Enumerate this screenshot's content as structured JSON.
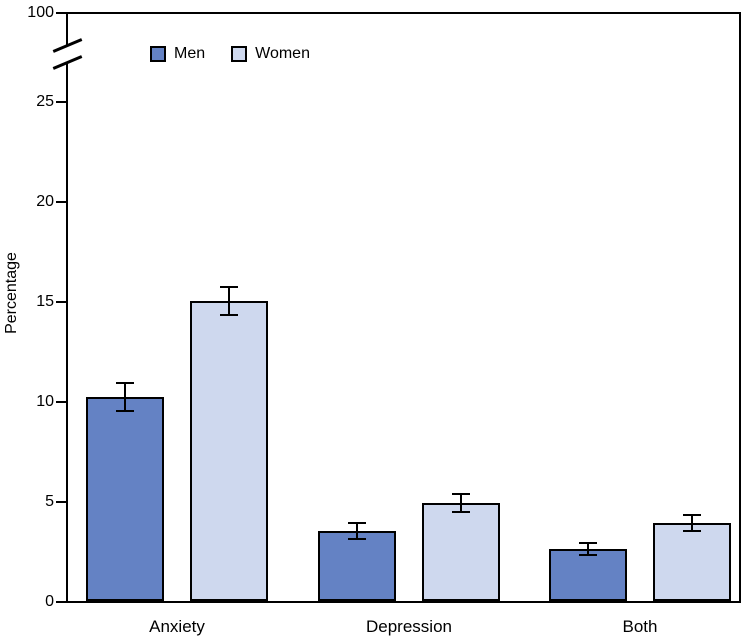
{
  "chart_data": {
    "type": "bar",
    "title": "",
    "xlabel": "",
    "ylabel": "Percentage",
    "categories": [
      "Anxiety",
      "Depression",
      "Both"
    ],
    "series": [
      {
        "name": "Men",
        "color": "#6482C4",
        "values": [
          10.2,
          3.5,
          2.6
        ],
        "error": [
          0.7,
          0.4,
          0.3
        ]
      },
      {
        "name": "Women",
        "color": "#CED8EE",
        "values": [
          15.0,
          4.9,
          3.9
        ],
        "error": [
          0.7,
          0.45,
          0.4
        ]
      }
    ],
    "yticks": [
      0,
      5,
      10,
      15,
      20,
      25
    ],
    "ylim": [
      0,
      25
    ],
    "y_axis_break": {
      "enabled": true,
      "upper_tick_label": "100"
    },
    "error_bar_style": "capped",
    "legend_position": "top-left-inside",
    "grid": false,
    "bar_border_color": "#000000",
    "axis_color": "#000000"
  }
}
